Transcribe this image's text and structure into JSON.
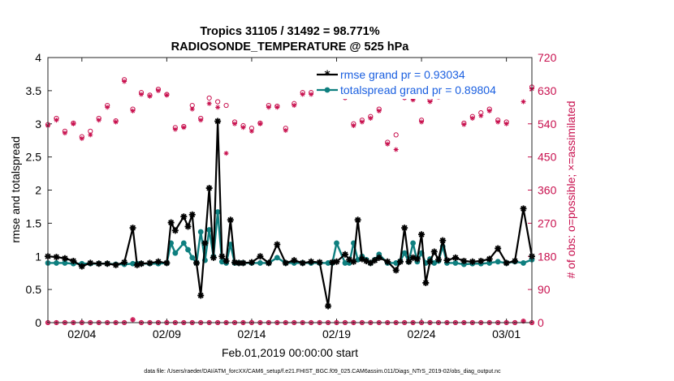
{
  "chart_data": {
    "type": "line",
    "title": "Tropics 31105 / 31492 = 98.771%",
    "subtitle": "RADIOSONDE_TEMPERATURE @ 525 hPa",
    "xlabel": "Feb.01,2019 00:00:00 start",
    "ylabel": "rmse and totalspread",
    "ylabel_right": "# of obs: o=possible; ×=assimilated",
    "footnote": "data file: /Users/raeder/DAI/ATM_forcXX/CAM6_setup/f.e21.FHIST_BGC.f09_025.CAM6assim.011/Diags_NTrS_2019-02/obs_diag_output.nc",
    "xlim": [
      1,
      29.5
    ],
    "xticks": [
      3,
      8,
      13,
      18,
      23,
      28
    ],
    "xtick_labels": [
      "02/04",
      "02/09",
      "02/14",
      "02/19",
      "02/24",
      "03/01"
    ],
    "ylim": [
      0,
      4
    ],
    "yticks": [
      0,
      0.5,
      1,
      1.5,
      2,
      2.5,
      3,
      3.5,
      4
    ],
    "ytick_labels": [
      "0",
      "0.5",
      "1",
      "1.5",
      "2",
      "2.5",
      "3",
      "3.5",
      "4"
    ],
    "ylim_right": [
      0,
      720
    ],
    "yticks_right": [
      0,
      90,
      180,
      270,
      360,
      450,
      540,
      630,
      720
    ],
    "ytick_labels_right": [
      "0",
      "90",
      "180",
      "270",
      "360",
      "450",
      "540",
      "630",
      "720"
    ],
    "colors": {
      "rmse": "#000000",
      "spread": "#0e7f7f",
      "obs": "#c8104e",
      "legend_text": "#1a5fe0"
    },
    "series": [
      {
        "name": "rmse grand pr = 0.93034",
        "x": [
          1,
          1.5,
          2,
          2.5,
          3,
          3.5,
          4,
          4.5,
          5,
          5.5,
          6,
          6.25,
          6.5,
          7,
          7.5,
          8,
          8.25,
          8.5,
          9,
          9.25,
          9.5,
          9.75,
          10,
          10.25,
          10.5,
          10.75,
          11,
          11.25,
          11.5,
          11.75,
          12,
          12.25,
          12.5,
          13,
          13.5,
          14,
          14.5,
          15,
          15.5,
          16,
          16.5,
          17,
          17.5,
          17.75,
          18,
          18.5,
          18.75,
          19,
          19.25,
          19.5,
          19.75,
          20,
          20.25,
          20.5,
          21,
          21.5,
          21.75,
          22,
          22.25,
          22.5,
          22.75,
          23,
          23.25,
          23.5,
          23.75,
          24,
          24.25,
          24.5,
          25,
          25.5,
          26,
          26.5,
          27,
          27.5,
          28,
          28.5,
          29,
          29.5
        ],
        "values": [
          1.0,
          0.99,
          0.97,
          0.93,
          0.85,
          0.9,
          0.89,
          0.89,
          0.87,
          0.91,
          1.43,
          0.87,
          0.89,
          0.9,
          0.92,
          0.9,
          1.51,
          1.39,
          1.6,
          1.45,
          1.63,
          0.9,
          0.41,
          1.2,
          2.03,
          0.98,
          3.04,
          1.0,
          0.93,
          1.55,
          0.91,
          0.9,
          0.9,
          0.91,
          1.0,
          0.9,
          1.18,
          0.9,
          0.94,
          0.9,
          0.92,
          0.91,
          0.25,
          0.91,
          0.92,
          1.03,
          0.95,
          0.92,
          1.55,
          0.96,
          0.93,
          0.9,
          0.94,
          0.98,
          0.92,
          0.79,
          0.92,
          1.43,
          0.92,
          0.98,
          0.96,
          1.33,
          0.6,
          0.92,
          1.07,
          0.95,
          1.24,
          0.94,
          0.98,
          0.93,
          0.92,
          0.93,
          0.96,
          1.12,
          0.9,
          0.93,
          1.72,
          1.0
        ]
      },
      {
        "name": "totalspread grand pr = 0.89804",
        "x": [
          1,
          1.5,
          2,
          2.5,
          3,
          3.5,
          4,
          4.5,
          5,
          5.5,
          6,
          6.25,
          6.5,
          7,
          7.5,
          8,
          8.25,
          8.5,
          9,
          9.25,
          9.5,
          9.75,
          10,
          10.25,
          10.5,
          10.75,
          11,
          11.25,
          11.5,
          11.75,
          12,
          12.25,
          12.5,
          13,
          13.5,
          14,
          14.5,
          15,
          15.5,
          16,
          16.5,
          17,
          17.5,
          17.75,
          18,
          18.5,
          18.75,
          19,
          19.25,
          19.5,
          19.75,
          20,
          20.25,
          20.5,
          21,
          21.5,
          21.75,
          22,
          22.25,
          22.5,
          22.75,
          23,
          23.25,
          23.5,
          23.75,
          24,
          24.25,
          24.5,
          25,
          25.5,
          26,
          26.5,
          27,
          27.5,
          28,
          28.5,
          29,
          29.5
        ],
        "values": [
          0.9,
          0.9,
          0.9,
          0.89,
          0.89,
          0.89,
          0.89,
          0.89,
          0.88,
          0.88,
          0.89,
          0.89,
          0.89,
          0.89,
          0.89,
          0.9,
          1.2,
          1.05,
          1.2,
          1.1,
          0.98,
          0.9,
          1.37,
          0.94,
          1.4,
          1.0,
          1.67,
          0.92,
          0.9,
          1.18,
          0.9,
          0.9,
          0.9,
          0.9,
          0.9,
          0.9,
          0.98,
          0.9,
          0.9,
          0.9,
          0.9,
          0.9,
          0.9,
          0.9,
          1.2,
          0.9,
          0.9,
          1.2,
          0.95,
          1.0,
          0.95,
          0.9,
          0.95,
          1.03,
          0.9,
          0.9,
          0.93,
          1.05,
          0.92,
          1.2,
          0.92,
          1.05,
          0.9,
          0.96,
          0.9,
          0.93,
          1.15,
          0.9,
          0.9,
          0.88,
          0.89,
          0.89,
          0.9,
          0.92,
          0.9,
          0.92,
          0.9,
          0.95
        ]
      },
      {
        "name": "obs possible",
        "x": [
          1,
          1.5,
          2,
          2.5,
          3,
          3.5,
          4,
          4.5,
          5,
          5.5,
          6,
          6.5,
          7,
          7.5,
          8,
          8.5,
          9,
          9.5,
          10,
          10.5,
          11,
          11.5,
          12,
          12.5,
          13,
          13.5,
          14,
          14.5,
          15,
          15.5,
          16,
          16.5,
          17,
          17.5,
          18,
          18.5,
          19,
          19.5,
          20,
          20.5,
          21,
          21.5,
          22,
          22.5,
          23,
          23.5,
          24,
          24.5,
          25,
          25.5,
          26,
          26.5,
          27,
          27.5,
          28,
          28.5,
          29,
          29.5
        ],
        "values": [
          538,
          555,
          520,
          542,
          505,
          520,
          555,
          590,
          548,
          660,
          580,
          625,
          618,
          634,
          620,
          530,
          533,
          590,
          555,
          610,
          600,
          590,
          545,
          535,
          528,
          542,
          590,
          588,
          528,
          595,
          625,
          625,
          640,
          635,
          630,
          618,
          540,
          550,
          560,
          580,
          490,
          510,
          620,
          610,
          550,
          605,
          618,
          620,
          620,
          542,
          560,
          570,
          580,
          550,
          545,
          640,
          620,
          640
        ]
      },
      {
        "name": "obs assimilated",
        "x": [
          1,
          1.5,
          2,
          2.5,
          3,
          3.5,
          4,
          4.5,
          5,
          5.5,
          6,
          6.5,
          7,
          7.5,
          8,
          8.5,
          9,
          9.5,
          10,
          10.5,
          11,
          11.5,
          12,
          12.5,
          13,
          13.5,
          14,
          14.5,
          15,
          15.5,
          16,
          16.5,
          17,
          17.5,
          18,
          18.5,
          19,
          19.5,
          20,
          20.5,
          21,
          21.5,
          22,
          22.5,
          23,
          23.5,
          24,
          24.5,
          25,
          25.5,
          26,
          26.5,
          27,
          27.5,
          28,
          28.5,
          29,
          29.5
        ],
        "values": [
          535,
          550,
          515,
          540,
          500,
          510,
          550,
          585,
          545,
          655,
          575,
          620,
          615,
          630,
          618,
          525,
          530,
          580,
          550,
          595,
          585,
          460,
          540,
          530,
          520,
          540,
          585,
          585,
          522,
          590,
          620,
          620,
          635,
          630,
          625,
          610,
          535,
          545,
          555,
          575,
          485,
          470,
          610,
          605,
          545,
          600,
          612,
          615,
          615,
          538,
          555,
          562,
          575,
          545,
          540,
          635,
          600,
          635
        ]
      },
      {
        "name": "obs possible (zero line)",
        "x": [
          1,
          1.5,
          2,
          2.5,
          3,
          3.5,
          4,
          4.5,
          5,
          5.5,
          6,
          6.5,
          7,
          7.5,
          8,
          8.5,
          9,
          9.5,
          10,
          10.5,
          11,
          11.5,
          12,
          12.5,
          13,
          13.5,
          14,
          14.5,
          15,
          15.5,
          16,
          16.5,
          17,
          17.5,
          18,
          18.5,
          19,
          19.5,
          20,
          20.5,
          21,
          21.5,
          22,
          22.5,
          23,
          23.5,
          24,
          24.5,
          25,
          25.5,
          26,
          26.5,
          27,
          27.5,
          28,
          28.5,
          29,
          29.5
        ],
        "values": [
          0,
          0,
          0,
          0,
          0,
          0,
          0,
          0,
          0,
          0,
          8,
          0,
          0,
          0,
          0,
          0,
          0,
          0,
          0,
          0,
          0,
          0,
          0,
          0,
          0,
          0,
          0,
          0,
          0,
          0,
          0,
          0,
          0,
          0,
          0,
          0,
          0,
          0,
          0,
          0,
          0,
          0,
          0,
          0,
          0,
          0,
          0,
          0,
          0,
          0,
          0,
          0,
          0,
          0,
          0,
          0,
          4,
          0
        ]
      }
    ]
  }
}
